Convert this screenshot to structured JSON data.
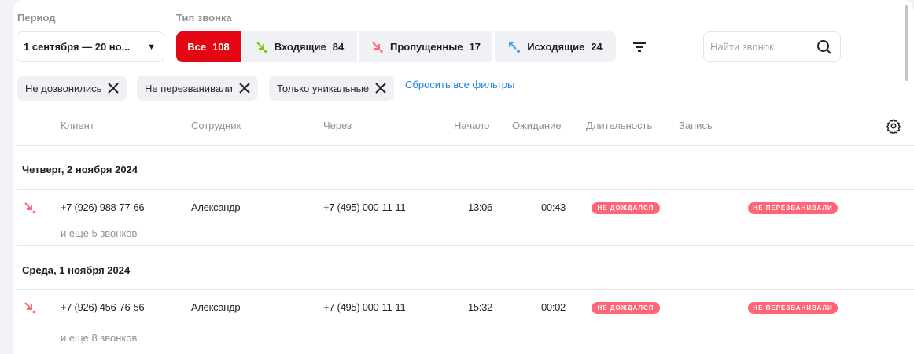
{
  "filters": {
    "period_label": "Период",
    "period_value": "1 сентября — 20 но...",
    "type_label": "Тип звонка",
    "tabs": [
      {
        "label": "Все",
        "count": "108"
      },
      {
        "label": "Входящие",
        "count": "84"
      },
      {
        "label": "Пропущенные",
        "count": "17"
      },
      {
        "label": "Исходящие",
        "count": "24"
      }
    ],
    "search_placeholder": "Найти звонок",
    "chips": [
      "Не дозвонились",
      "Не перезванивали",
      "Только уникальные"
    ],
    "reset_label": "Сбросить все фильтры"
  },
  "colors": {
    "accent": "#e30613",
    "missed": "#ff6575",
    "incoming": "#7ac70c",
    "outgoing": "#3aa0f0",
    "link": "#1a86e8"
  },
  "table": {
    "columns": [
      "Клиент",
      "Сотрудник",
      "Через",
      "Начало",
      "Ожидание",
      "Длительность",
      "Запись"
    ],
    "groups": [
      {
        "date": "Четверг, 2 ноября 2024",
        "row": {
          "type": "missed",
          "client": "+7 (926) 988-77-66",
          "employee": "Александр",
          "via": "+7 (495) 000-11-11",
          "start": "13:06",
          "wait": "00:43",
          "duration_badge": "НЕ ДОЖДАЛСЯ",
          "record_badge": "НЕ ПЕРЕЗВАНИВАЛИ",
          "more": "и еще 5 звонков"
        }
      },
      {
        "date": "Среда, 1 ноября 2024",
        "row": {
          "type": "missed",
          "client": "+7 (926) 456-76-56",
          "employee": "Александр",
          "via": "+7 (495) 000-11-11",
          "start": "15:32",
          "wait": "00:02",
          "duration_badge": "НЕ ДОЖДАЛСЯ",
          "record_badge": "НЕ ПЕРЕЗВАНИВАЛИ",
          "more": "и еще 8 звонков"
        }
      }
    ]
  }
}
